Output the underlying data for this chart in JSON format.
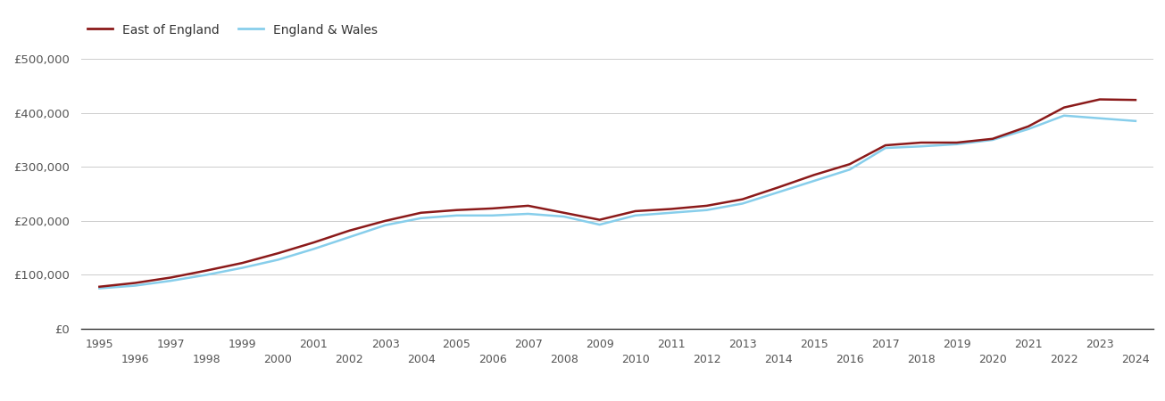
{
  "east_of_england": {
    "years": [
      1995,
      1996,
      1997,
      1998,
      1999,
      2000,
      2001,
      2002,
      2003,
      2004,
      2005,
      2006,
      2007,
      2008,
      2009,
      2010,
      2011,
      2012,
      2013,
      2014,
      2015,
      2016,
      2017,
      2018,
      2019,
      2020,
      2021,
      2022,
      2023,
      2024
    ],
    "values": [
      78000,
      85000,
      95000,
      108000,
      122000,
      140000,
      160000,
      182000,
      200000,
      215000,
      220000,
      223000,
      228000,
      215000,
      202000,
      218000,
      222000,
      228000,
      240000,
      262000,
      285000,
      305000,
      340000,
      345000,
      345000,
      352000,
      375000,
      410000,
      425000,
      424000
    ]
  },
  "england_wales": {
    "years": [
      1995,
      1996,
      1997,
      1998,
      1999,
      2000,
      2001,
      2002,
      2003,
      2004,
      2005,
      2006,
      2007,
      2008,
      2009,
      2010,
      2011,
      2012,
      2013,
      2014,
      2015,
      2016,
      2017,
      2018,
      2019,
      2020,
      2021,
      2022,
      2024
    ],
    "values": [
      75000,
      80000,
      89000,
      100000,
      113000,
      128000,
      148000,
      170000,
      192000,
      205000,
      210000,
      210000,
      213000,
      208000,
      193000,
      210000,
      215000,
      220000,
      232000,
      253000,
      274000,
      295000,
      335000,
      338000,
      342000,
      350000,
      370000,
      395000,
      385000
    ]
  },
  "eoe_color": "#8B1A1A",
  "ew_color": "#87CEEB",
  "line_width": 1.8,
  "ylim": [
    0,
    520000
  ],
  "yticks": [
    0,
    100000,
    200000,
    300000,
    400000,
    500000
  ],
  "ytick_labels": [
    "£0",
    "£100,000",
    "£200,000",
    "£300,000",
    "£400,000",
    "£500,000"
  ],
  "xlim": [
    1994.5,
    2024.5
  ],
  "xticks_row1": [
    1995,
    1997,
    1999,
    2001,
    2003,
    2005,
    2007,
    2009,
    2011,
    2013,
    2015,
    2017,
    2019,
    2021,
    2023
  ],
  "xticks_row2": [
    1996,
    1998,
    2000,
    2002,
    2004,
    2006,
    2008,
    2010,
    2012,
    2014,
    2016,
    2018,
    2020,
    2022,
    2024
  ],
  "legend_labels": [
    "East of England",
    "England & Wales"
  ],
  "background_color": "#ffffff",
  "grid_color": "#cccccc"
}
